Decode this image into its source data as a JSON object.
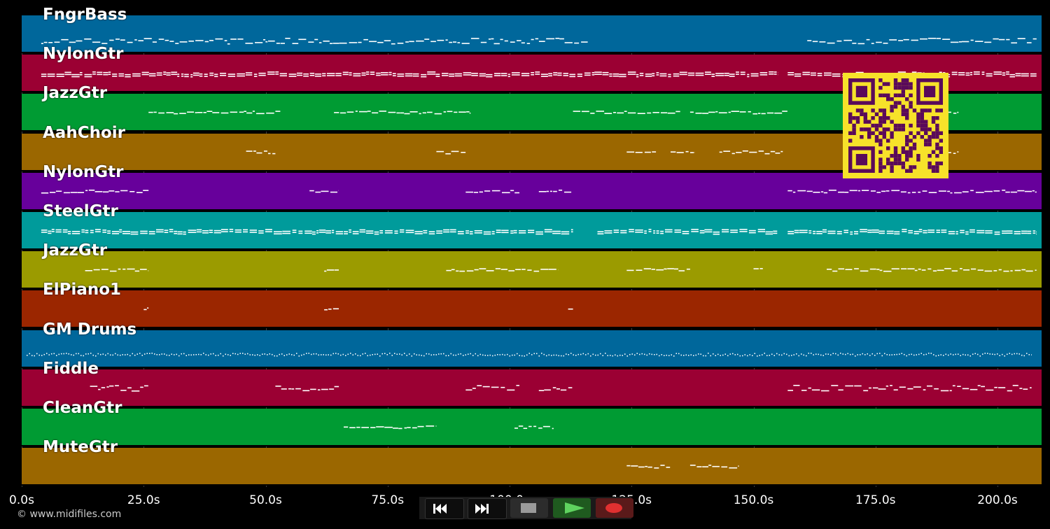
{
  "timeline": {
    "ticks": [
      "0.0s",
      "25.0s",
      "50.0s",
      "75.0s",
      "100.0s",
      "125.0s",
      "150.0s",
      "175.0s",
      "200.0s"
    ],
    "tick_seconds": [
      0,
      25,
      50,
      75,
      100,
      125,
      150,
      175,
      200
    ],
    "max_seconds": 209
  },
  "tracks": [
    {
      "name": "FngrBass",
      "color": "#00679b",
      "note_ranges": [
        [
          4,
          116
        ],
        [
          161,
          208
        ]
      ]
    },
    {
      "name": "NylonGtr",
      "color": "#9b0033",
      "note_ranges": [
        [
          4,
          155
        ],
        [
          157,
          208
        ]
      ]
    },
    {
      "name": "JazzGtr",
      "color": "#009b33",
      "note_ranges": [
        [
          26,
          53
        ],
        [
          64,
          92
        ],
        [
          113,
          135
        ],
        [
          137,
          157
        ],
        [
          180,
          192
        ]
      ]
    },
    {
      "name": "AahChoir",
      "color": "#9b6700",
      "note_ranges": [
        [
          46,
          52
        ],
        [
          85,
          91
        ],
        [
          124,
          130
        ],
        [
          133,
          138
        ],
        [
          143,
          156
        ],
        [
          183,
          192
        ]
      ]
    },
    {
      "name": "NylonGtr",
      "color": "#67009b",
      "note_ranges": [
        [
          4,
          26
        ],
        [
          59,
          65
        ],
        [
          91,
          102
        ],
        [
          106,
          113
        ],
        [
          157,
          208
        ]
      ]
    },
    {
      "name": "SteelGtr",
      "color": "#009b9b",
      "note_ranges": [
        [
          4,
          113
        ],
        [
          118,
          155
        ],
        [
          157,
          208
        ]
      ]
    },
    {
      "name": "JazzGtr",
      "color": "#9b9b00",
      "note_ranges": [
        [
          13,
          26
        ],
        [
          62,
          65
        ],
        [
          87,
          110
        ],
        [
          124,
          137
        ],
        [
          150,
          152
        ],
        [
          165,
          208
        ]
      ]
    },
    {
      "name": "ElPiano1",
      "color": "#9b2600",
      "note_ranges": [
        [
          25,
          26
        ],
        [
          62,
          65
        ],
        [
          112,
          113
        ]
      ]
    },
    {
      "name": "GM Drums",
      "color": "#00679b",
      "note_ranges": [
        [
          1,
          207
        ]
      ]
    },
    {
      "name": "Fiddle",
      "color": "#9b0033",
      "note_ranges": [
        [
          14,
          26
        ],
        [
          52,
          65
        ],
        [
          91,
          102
        ],
        [
          106,
          113
        ],
        [
          157,
          207
        ]
      ]
    },
    {
      "name": "CleanGtr",
      "color": "#009b33",
      "note_ranges": [
        [
          66,
          85
        ],
        [
          101,
          109
        ]
      ]
    },
    {
      "name": "MuteGtr",
      "color": "#9b6700",
      "note_ranges": [
        [
          124,
          133
        ],
        [
          137,
          147
        ]
      ]
    }
  ],
  "footer": {
    "copyright": "© www.midifiles.com"
  },
  "controls": {
    "rewind_icon": "rewind-icon",
    "forward_icon": "fast-forward-icon",
    "stop_icon": "stop-icon",
    "play_icon": "play-icon",
    "record_icon": "record-icon",
    "play_color": "#5fd35f",
    "record_color": "#e03030"
  },
  "qr_colors": {
    "fg": "#5a0a5a",
    "bg": "#f7e22a"
  }
}
